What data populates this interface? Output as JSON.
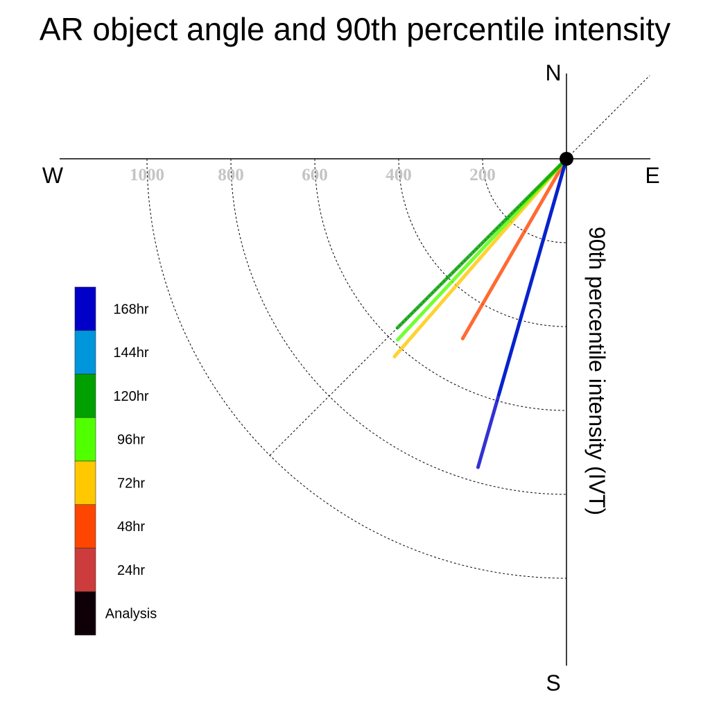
{
  "chart_data": {
    "type": "polar-vector",
    "title": "AR object angle and 90th percentile intensity",
    "axis_title": "90th percentile intensity (IVT)",
    "compass": {
      "north": "N",
      "south": "S",
      "east": "E",
      "west": "W"
    },
    "radial_ticks": [
      "200",
      "400",
      "600",
      "800",
      "1000"
    ],
    "radial_tick_values": [
      200,
      400,
      600,
      800,
      1000
    ],
    "r_max": 1000,
    "guide_angle_deg": 225,
    "series": [
      {
        "name": "168hr",
        "color": "#0000c8",
        "angle_deg": 196,
        "intensity": 765
      },
      {
        "name": "144hr",
        "color": "#0096dc",
        "angle_deg": 196,
        "intensity": 585
      },
      {
        "name": "120hr",
        "color": "#00a000",
        "angle_deg": 225,
        "intensity": 570
      },
      {
        "name": "96hr",
        "color": "#50ff00",
        "angle_deg": 223,
        "intensity": 590
      },
      {
        "name": "72hr",
        "color": "#ffc800",
        "angle_deg": 221,
        "intensity": 625
      },
      {
        "name": "48hr",
        "color": "#ff4600",
        "angle_deg": 210,
        "intensity": 495
      },
      {
        "name": "24hr",
        "color": "#cd3c3c",
        "angle_deg": 0,
        "intensity": 0
      },
      {
        "name": "Analysis",
        "color": "#0f0008",
        "angle_deg": 0,
        "intensity": 0
      }
    ]
  }
}
